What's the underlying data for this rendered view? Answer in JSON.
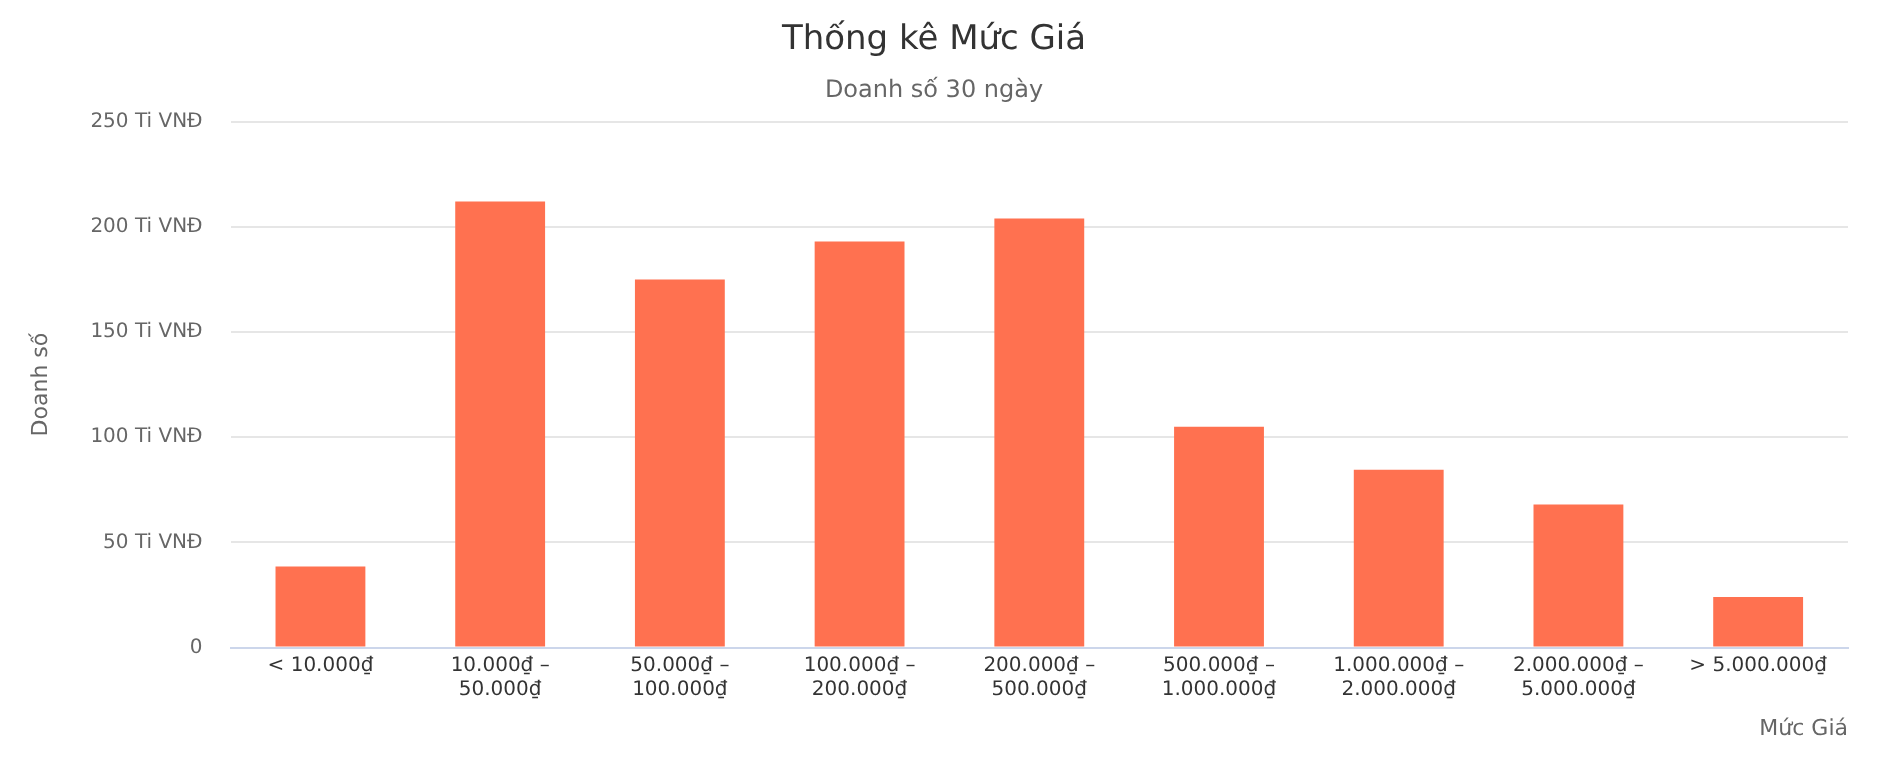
{
  "chart_data": {
    "type": "bar",
    "title": "Thống kê Mức Giá",
    "subtitle": "Doanh số 30 ngày",
    "xlabel": "Mức Giá",
    "ylabel": "Doanh số",
    "categories": [
      "< 10.000₫",
      "10.000₫ – 50.000₫",
      "50.000₫ – 100.000₫",
      "100.000₫ – 200.000₫",
      "200.000₫ – 500.000₫",
      "500.000₫ – 1.000.000₫",
      "1.000.000₫ – 2.000.000₫",
      "2.000.000₫ – 5.000.000₫",
      "> 5.000.000₫"
    ],
    "values": [
      38.5,
      212,
      175,
      193,
      204,
      105,
      84.5,
      68,
      24
    ],
    "color": "#ff7150",
    "ylim": [
      0,
      250
    ],
    "yticks": [
      0,
      {
        "value": 50,
        "label": "50 Ti VNĐ"
      },
      {
        "value": 100,
        "label": "100 Ti VNĐ"
      },
      {
        "value": 150,
        "label": "150 Ti VNĐ"
      },
      {
        "value": 200,
        "label": "200 Ti VNĐ"
      },
      {
        "value": 250,
        "label": "250 Ti VNĐ"
      }
    ],
    "grid": "y",
    "legend": false
  }
}
